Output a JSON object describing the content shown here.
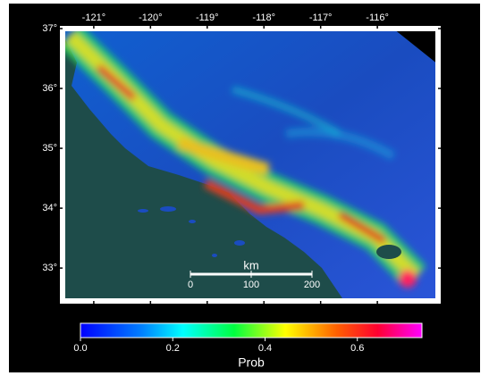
{
  "map": {
    "lon_lim": [
      -121.55,
      -114.93
    ],
    "lat_lim": [
      32.45,
      37.0
    ],
    "lon_ticks": [
      {
        "value": -121,
        "label": "-121°"
      },
      {
        "value": -120,
        "label": "-120°"
      },
      {
        "value": -119,
        "label": "-119°"
      },
      {
        "value": -118,
        "label": "-118°"
      },
      {
        "value": -117,
        "label": "-117°"
      },
      {
        "value": -116,
        "label": "-116°"
      }
    ],
    "lat_ticks": [
      {
        "value": 33,
        "label": "33°"
      },
      {
        "value": 34,
        "label": "34°"
      },
      {
        "value": 35,
        "label": "35°"
      },
      {
        "value": 36,
        "label": "36°"
      },
      {
        "value": 37,
        "label": "37°"
      }
    ],
    "scale_bar": {
      "title": "km",
      "lim": [
        0,
        200
      ],
      "ticks": [
        0,
        100,
        200
      ]
    }
  },
  "colorbar": {
    "title": "Prob",
    "lim": [
      0,
      0.74
    ],
    "ticks": [
      {
        "value": 0,
        "label": "0.0"
      },
      0.2,
      0.4,
      0.6
    ]
  }
}
